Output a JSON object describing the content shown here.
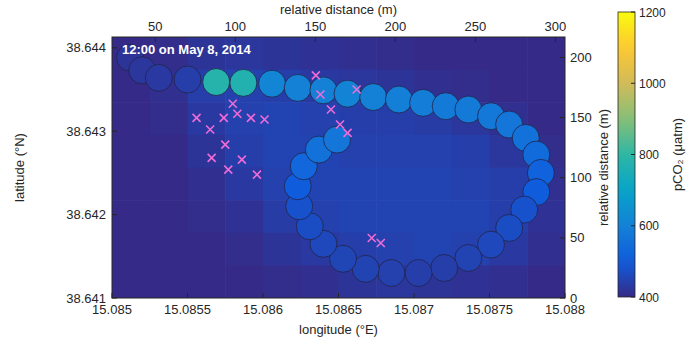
{
  "chart_data": {
    "type": "scatter",
    "annotation": "12:00 on May 8, 2014",
    "x_label": "longitude (°E)",
    "y_label": "latitude (°N)",
    "x2_label": "relative distance (m)",
    "y2_label": "relative distance (m)",
    "xlim": [
      15.085,
      15.088
    ],
    "xticks": [
      15.085,
      15.0855,
      15.086,
      15.0865,
      15.087,
      15.0875,
      15.088
    ],
    "ylim": [
      38.641,
      38.64413
    ],
    "yticks": [
      38.641,
      38.642,
      38.643,
      38.644
    ],
    "x2lim": [
      23,
      306
    ],
    "x2ticks": [
      50,
      100,
      150,
      200,
      250,
      300
    ],
    "y2lim": [
      0,
      217
    ],
    "y2ticks": [
      0,
      50,
      100,
      150,
      200
    ],
    "grid": false,
    "colorbar": {
      "label": "pCO₂ (μatm)",
      "lim": [
        400,
        1200
      ],
      "ticks": [
        400,
        600,
        800,
        1000,
        1200
      ]
    },
    "cells": [
      [
        400,
        405,
        420,
        425,
        420,
        415,
        410,
        405,
        400,
        400,
        400,
        400
      ],
      [
        400,
        410,
        440,
        445,
        440,
        430,
        425,
        420,
        410,
        405,
        400,
        400
      ],
      [
        400,
        405,
        430,
        445,
        450,
        445,
        440,
        440,
        435,
        425,
        410,
        400
      ],
      [
        400,
        400,
        420,
        440,
        450,
        450,
        445,
        445,
        445,
        440,
        425,
        405
      ],
      [
        400,
        400,
        410,
        430,
        445,
        450,
        450,
        450,
        450,
        445,
        440,
        410
      ],
      [
        400,
        400,
        405,
        415,
        435,
        445,
        450,
        450,
        450,
        450,
        440,
        415
      ],
      [
        400,
        400,
        400,
        405,
        420,
        430,
        440,
        445,
        450,
        445,
        430,
        410
      ],
      [
        400,
        400,
        400,
        400,
        405,
        410,
        420,
        425,
        420,
        415,
        410,
        400
      ]
    ],
    "series": [
      {
        "marker": "circle",
        "x": [
          15.08512,
          15.0852,
          15.08531,
          15.0855,
          15.08569,
          15.08587,
          15.08606,
          15.08623,
          15.0864,
          15.08656,
          15.08673,
          15.0869,
          15.08706,
          15.08721,
          15.08736,
          15.08751,
          15.08763,
          15.08774,
          15.08781,
          15.08784,
          15.08781,
          15.08773,
          15.08763,
          15.08751,
          15.08736,
          15.0872,
          15.08703,
          15.08685,
          15.08668,
          15.08653,
          15.0864,
          15.08631,
          15.08624,
          15.08623,
          15.08627,
          15.08637,
          15.08649
        ],
        "values": [
          38.64388,
          38.64373,
          38.64364,
          38.64362,
          38.64359,
          38.64358,
          38.64357,
          38.64352,
          38.64349,
          38.64345,
          38.64341,
          38.64338,
          38.64334,
          38.6433,
          38.64326,
          38.64318,
          38.64308,
          38.64292,
          38.64272,
          38.6425,
          38.64227,
          38.64206,
          38.64184,
          38.64164,
          38.64148,
          38.64136,
          38.6413,
          38.6413,
          38.64135,
          38.64147,
          38.64165,
          38.64186,
          38.6421,
          38.64234,
          38.64258,
          38.64278,
          38.6429
        ],
        "pco2": [
          420,
          425,
          430,
          440,
          780,
          770,
          610,
          600,
          600,
          605,
          600,
          595,
          590,
          585,
          580,
          575,
          570,
          560,
          540,
          520,
          500,
          480,
          470,
          460,
          450,
          440,
          440,
          445,
          450,
          455,
          460,
          470,
          480,
          500,
          530,
          560,
          570
        ]
      },
      {
        "marker": "x",
        "color": "#f06bd8",
        "x": [
          15.08556,
          15.08565,
          15.08575,
          15.08586,
          15.08596,
          15.08574,
          15.08583,
          15.08592,
          15.0858,
          15.08635,
          15.08638,
          15.08645,
          15.08651,
          15.08656,
          15.08662,
          15.08566,
          15.08577,
          15.08672,
          15.08678,
          15.08601
        ],
        "values": [
          38.64316,
          38.64302,
          38.64284,
          38.64266,
          38.64248,
          38.64316,
          38.64321,
          38.64316,
          38.64333,
          38.64367,
          38.64344,
          38.64326,
          38.64308,
          38.64298,
          38.6435,
          38.64268,
          38.64254,
          38.64172,
          38.64166,
          38.64314
        ]
      }
    ]
  }
}
